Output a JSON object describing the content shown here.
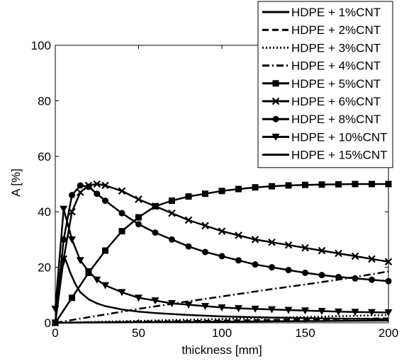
{
  "chart_data": {
    "type": "line",
    "xlabel": "thickness [mm]",
    "ylabel": "A [%]",
    "xlim": [
      0,
      200
    ],
    "ylim": [
      0,
      100
    ],
    "x_ticks": [
      0,
      50,
      100,
      150,
      200
    ],
    "y_ticks": [
      0,
      20,
      40,
      60,
      80,
      100
    ],
    "grid": false,
    "legend_position": "top-right",
    "line_color": "#000000",
    "series": [
      {
        "name": "HDPE + 1%CNT",
        "line": "solid",
        "marker": "none",
        "x": [
          0,
          50,
          100,
          150,
          200
        ],
        "y": [
          0,
          0.2,
          0.4,
          0.6,
          0.8
        ]
      },
      {
        "name": "HDPE + 2%CNT",
        "line": "dashed",
        "marker": "none",
        "x": [
          0,
          50,
          100,
          150,
          200
        ],
        "y": [
          0,
          0.4,
          0.8,
          1.2,
          1.6
        ]
      },
      {
        "name": "HDPE + 3%CNT",
        "line": "dotted",
        "marker": "none",
        "x": [
          0,
          50,
          100,
          150,
          200
        ],
        "y": [
          0,
          0.7,
          1.4,
          2.1,
          2.8
        ]
      },
      {
        "name": "HDPE + 4%CNT",
        "line": "dashdot",
        "marker": "none",
        "x": [
          0,
          25,
          50,
          75,
          100,
          125,
          150,
          175,
          200
        ],
        "y": [
          0,
          2.5,
          5,
          7.3,
          9.5,
          11.7,
          13.8,
          16,
          18.5
        ]
      },
      {
        "name": "HDPE + 5%CNT",
        "line": "solid",
        "marker": "square",
        "x": [
          0,
          10,
          20,
          30,
          40,
          50,
          60,
          70,
          80,
          90,
          100,
          110,
          120,
          130,
          140,
          150,
          160,
          170,
          180,
          190,
          200
        ],
        "y": [
          0,
          9,
          18,
          26,
          33,
          38,
          42,
          44,
          45.5,
          46.5,
          47.5,
          48.2,
          48.8,
          49.2,
          49.5,
          49.7,
          49.8,
          49.9,
          50,
          50,
          50
        ]
      },
      {
        "name": "HDPE + 6%CNT",
        "line": "solid",
        "marker": "x",
        "x": [
          0,
          5,
          10,
          15,
          20,
          25,
          30,
          40,
          50,
          60,
          70,
          80,
          90,
          100,
          110,
          120,
          130,
          140,
          150,
          160,
          170,
          180,
          190,
          200
        ],
        "y": [
          0,
          23,
          40,
          47,
          49.5,
          50,
          49.5,
          47.5,
          44.5,
          42,
          39.5,
          37,
          35,
          33,
          31.5,
          30,
          29,
          28,
          27,
          26,
          25,
          24,
          23,
          22
        ]
      },
      {
        "name": "HDPE + 8%CNT",
        "line": "solid",
        "marker": "circle",
        "x": [
          0,
          5,
          10,
          15,
          20,
          25,
          30,
          40,
          50,
          60,
          70,
          80,
          90,
          100,
          110,
          120,
          130,
          140,
          150,
          160,
          170,
          180,
          190,
          200
        ],
        "y": [
          0,
          30,
          46,
          49.5,
          49,
          46.5,
          44,
          39.5,
          35.5,
          32.5,
          30,
          27.5,
          25.5,
          24,
          22.5,
          21,
          20,
          19,
          18,
          17.2,
          16.5,
          16,
          15.5,
          15
        ]
      },
      {
        "name": "HDPE + 10%CNT",
        "line": "solid",
        "marker": "triangle-down",
        "x": [
          0,
          5,
          10,
          15,
          20,
          25,
          30,
          40,
          50,
          60,
          70,
          80,
          90,
          100,
          110,
          120,
          130,
          140,
          150,
          160,
          170,
          180,
          190,
          200
        ],
        "y": [
          5,
          41,
          30,
          22.5,
          18.5,
          15.5,
          13.5,
          11,
          9,
          8,
          7,
          6.5,
          6,
          5.5,
          5.2,
          5,
          4.8,
          4.6,
          4.4,
          4.2,
          4,
          3.9,
          3.8,
          3.7
        ]
      },
      {
        "name": "HDPE + 15%CNT",
        "line": "solid",
        "marker": "none",
        "x": [
          0,
          3,
          6,
          9,
          12,
          15,
          20,
          25,
          30,
          40,
          50,
          60,
          80,
          100,
          130,
          160,
          200
        ],
        "y": [
          0,
          18,
          23,
          18,
          14,
          11,
          8.5,
          7,
          6,
          4.8,
          4,
          3.5,
          2.8,
          2.3,
          1.9,
          1.6,
          1.3
        ]
      }
    ]
  }
}
